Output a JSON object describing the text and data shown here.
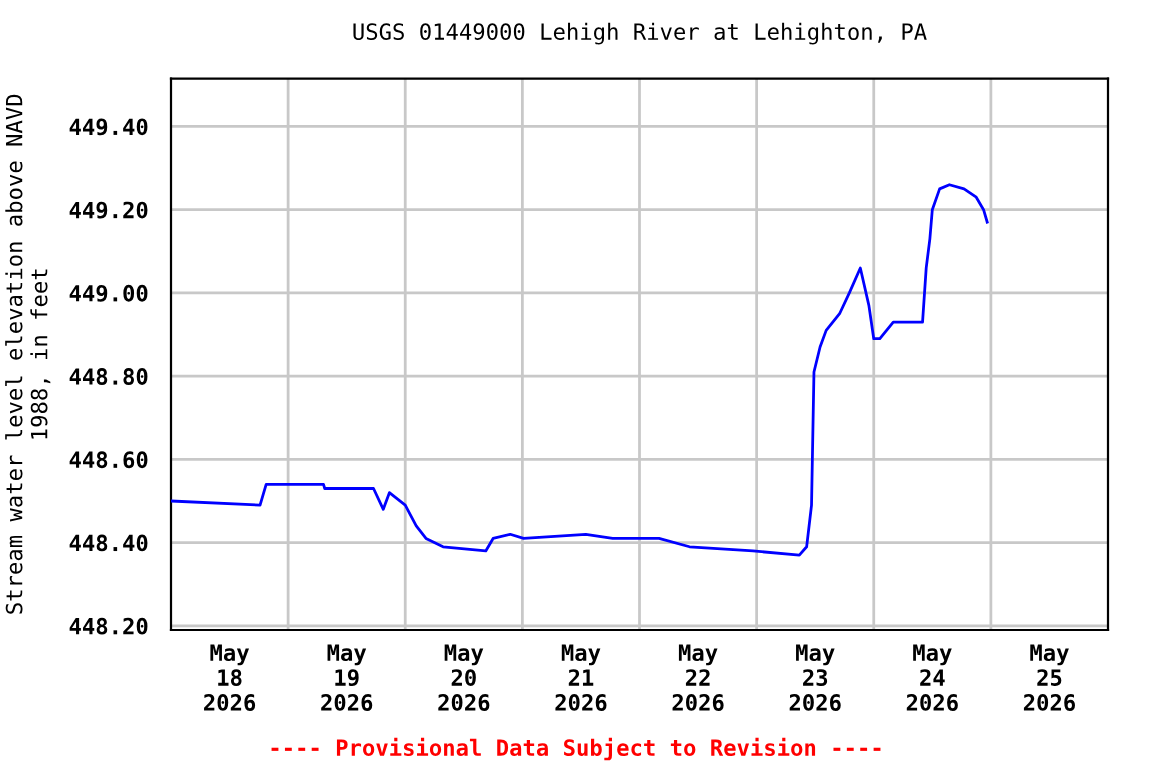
{
  "chart_data": {
    "type": "line",
    "title": "USGS 01449000 Lehigh River at Lehighton, PA",
    "ylabel": "Stream water level elevation above NAVD\n1988, in feet",
    "x": [
      "2026-05-18T00:00",
      "2026-05-18T18:15",
      "2026-05-18T19:30",
      "2026-05-19T07:15",
      "2026-05-19T07:30",
      "2026-05-19T17:30",
      "2026-05-19T19:30",
      "2026-05-19T20:45",
      "2026-05-20T00:00",
      "2026-05-20T02:15",
      "2026-05-20T04:15",
      "2026-05-20T07:45",
      "2026-05-20T16:30",
      "2026-05-20T18:00",
      "2026-05-20T21:30",
      "2026-05-21T00:15",
      "2026-05-21T13:00",
      "2026-05-21T18:30",
      "2026-05-22T04:00",
      "2026-05-22T10:15",
      "2026-05-22T23:15",
      "2026-05-23T08:45",
      "2026-05-23T10:15",
      "2026-05-23T11:15",
      "2026-05-23T11:45",
      "2026-05-23T13:00",
      "2026-05-23T14:15",
      "2026-05-23T17:00",
      "2026-05-23T19:00",
      "2026-05-23T21:15",
      "2026-05-23T23:00",
      "2026-05-24T00:00",
      "2026-05-24T01:15",
      "2026-05-24T04:00",
      "2026-05-24T10:00",
      "2026-05-24T10:45",
      "2026-05-24T11:30",
      "2026-05-24T12:00",
      "2026-05-24T13:30",
      "2026-05-24T15:30",
      "2026-05-24T18:30",
      "2026-05-24T21:00",
      "2026-05-24T22:30",
      "2026-05-24T23:15"
    ],
    "series": [
      {
        "color": "#0000ff",
        "values": [
          448.5,
          448.49,
          448.54,
          448.54,
          448.53,
          448.53,
          448.48,
          448.52,
          448.49,
          448.44,
          448.41,
          448.39,
          448.38,
          448.41,
          448.42,
          448.41,
          448.42,
          448.41,
          448.41,
          448.39,
          448.38,
          448.37,
          448.39,
          448.49,
          448.81,
          448.87,
          448.91,
          448.95,
          449.0,
          449.06,
          448.97,
          448.89,
          448.89,
          448.93,
          448.93,
          449.06,
          449.13,
          449.2,
          449.25,
          449.26,
          449.25,
          449.23,
          449.2,
          449.17
        ]
      }
    ],
    "xlim": [
      "2026-05-18T00:00",
      "2026-05-26T00:00"
    ],
    "xticks": [
      {
        "value": "2026-05-18T12:00",
        "label": "May\n18\n2026"
      },
      {
        "value": "2026-05-19T12:00",
        "label": "May\n19\n2026"
      },
      {
        "value": "2026-05-20T12:00",
        "label": "May\n20\n2026"
      },
      {
        "value": "2026-05-21T12:00",
        "label": "May\n21\n2026"
      },
      {
        "value": "2026-05-22T12:00",
        "label": "May\n22\n2026"
      },
      {
        "value": "2026-05-23T12:00",
        "label": "May\n23\n2026"
      },
      {
        "value": "2026-05-24T12:00",
        "label": "May\n24\n2026"
      },
      {
        "value": "2026-05-25T12:00",
        "label": "May\n25\n2026"
      },
      {
        "value": "2026-05-19T00:00",
        "label": null
      },
      {
        "value": "2026-05-20T00:00",
        "label": null
      },
      {
        "value": "2026-05-21T00:00",
        "label": null
      },
      {
        "value": "2026-05-22T00:00",
        "label": null
      },
      {
        "value": "2026-05-23T00:00",
        "label": null
      },
      {
        "value": "2026-05-24T00:00",
        "label": null
      },
      {
        "value": "2026-05-25T00:00",
        "label": null
      }
    ],
    "ylim": [
      448.19,
      449.515
    ],
    "yticks": [
      {
        "value": 448.2,
        "label": "448.20"
      },
      {
        "value": 448.4,
        "label": "448.40"
      },
      {
        "value": 448.6,
        "label": "448.60"
      },
      {
        "value": 448.8,
        "label": "448.80"
      },
      {
        "value": 449.0,
        "label": "449.00"
      },
      {
        "value": 449.2,
        "label": "449.20"
      },
      {
        "value": 449.4,
        "label": "449.40"
      }
    ],
    "grid": true,
    "marker": "none",
    "line_style": "solid",
    "annotations": [
      "---- Provisional Data Subject to Revision ----"
    ]
  }
}
